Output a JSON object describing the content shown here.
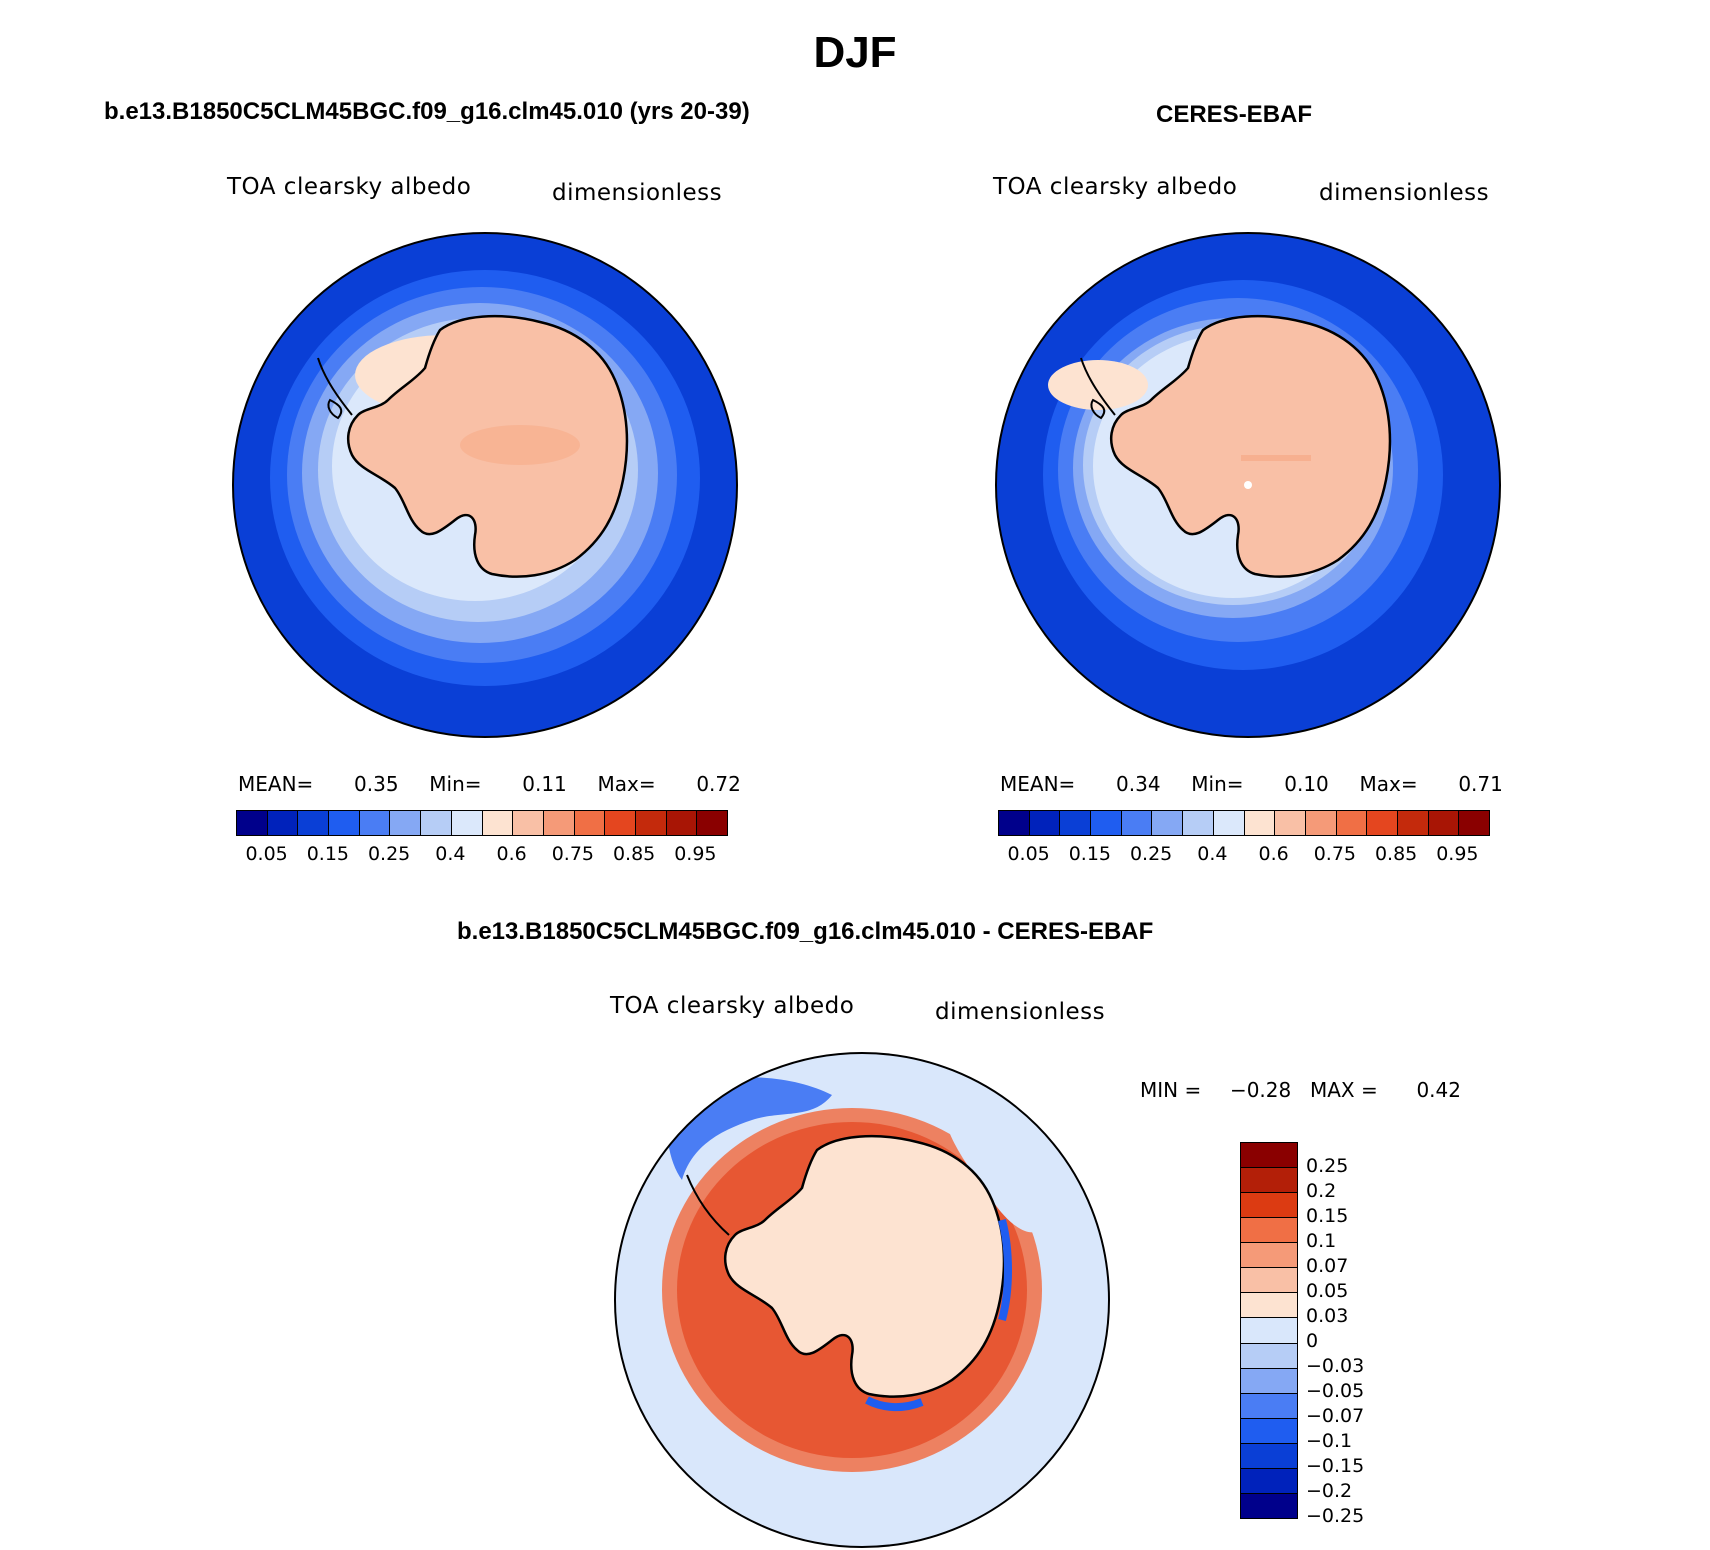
{
  "season": "DJF",
  "panels": {
    "model": {
      "title": "b.e13.B1850C5CLM45BGC.f09_g16.clm45.010 (yrs 20-39)",
      "variable": "TOA clearsky albedo",
      "units": "dimensionless",
      "stats": {
        "mean_label": "MEAN=",
        "mean": "0.35",
        "min_label": "Min=",
        "min": "0.11",
        "max_label": "Max=",
        "max": "0.72"
      }
    },
    "obs": {
      "title": "CERES-EBAF",
      "variable": "TOA clearsky albedo",
      "units": "dimensionless",
      "stats": {
        "mean_label": "MEAN=",
        "mean": "0.34",
        "min_label": "Min=",
        "min": "0.10",
        "max_label": "Max=",
        "max": "0.71"
      }
    },
    "diff": {
      "title": "b.e13.B1850C5CLM45BGC.f09_g16.clm45.010 - CERES-EBAF",
      "variable": "TOA clearsky albedo",
      "units": "dimensionless",
      "stats": {
        "min_label": "MIN =",
        "min": "−0.28",
        "max_label": "MAX =",
        "max": "0.42"
      }
    }
  },
  "abs_colorbar": {
    "colors": [
      "#00008b",
      "#0022bb",
      "#0a3fd6",
      "#1f5df0",
      "#4a7df4",
      "#85a8f4",
      "#b6cdf6",
      "#dbe8fb",
      "#fde3d1",
      "#f9c0a6",
      "#f59a78",
      "#f06f45",
      "#e4461f",
      "#c42a0c",
      "#a81505",
      "#8a0000"
    ],
    "tick_labels": [
      "0.05",
      "0.15",
      "0.25",
      "0.4",
      "0.6",
      "0.75",
      "0.85",
      "0.95"
    ]
  },
  "diff_colorbar": {
    "colors_top_to_bottom": [
      "#8a0000",
      "#b31f08",
      "#dc3b12",
      "#f06f45",
      "#f59a78",
      "#f9c0a6",
      "#fde3d1",
      "#d9e7fb",
      "#b6cdf6",
      "#85a8f4",
      "#4a7df4",
      "#1f5df0",
      "#0a3fd6",
      "#0022bb",
      "#00008b"
    ],
    "tick_labels": [
      "0.25",
      "0.2",
      "0.15",
      "0.1",
      "0.07",
      "0.05",
      "0.03",
      "0",
      "−0.03",
      "−0.05",
      "−0.07",
      "−0.1",
      "−0.15",
      "−0.2",
      "−0.25"
    ]
  },
  "map_colors": {
    "ocean_dark": "#0a3fd6",
    "ocean_mid": "#1f5df0",
    "ocean_light": "#4a7df4",
    "ice_pale": "#85a8f4",
    "ice_lighter": "#b6cdf6",
    "ice_lightest": "#dbe8fb",
    "ice_peach": "#fde3d1",
    "continent": "#f9c0a6",
    "diff_neg_light": "#d9e7fb",
    "diff_pos_dark": "#e4461f",
    "diff_pos_mid": "#f06f45",
    "diff_continent": "#fde3d1"
  }
}
